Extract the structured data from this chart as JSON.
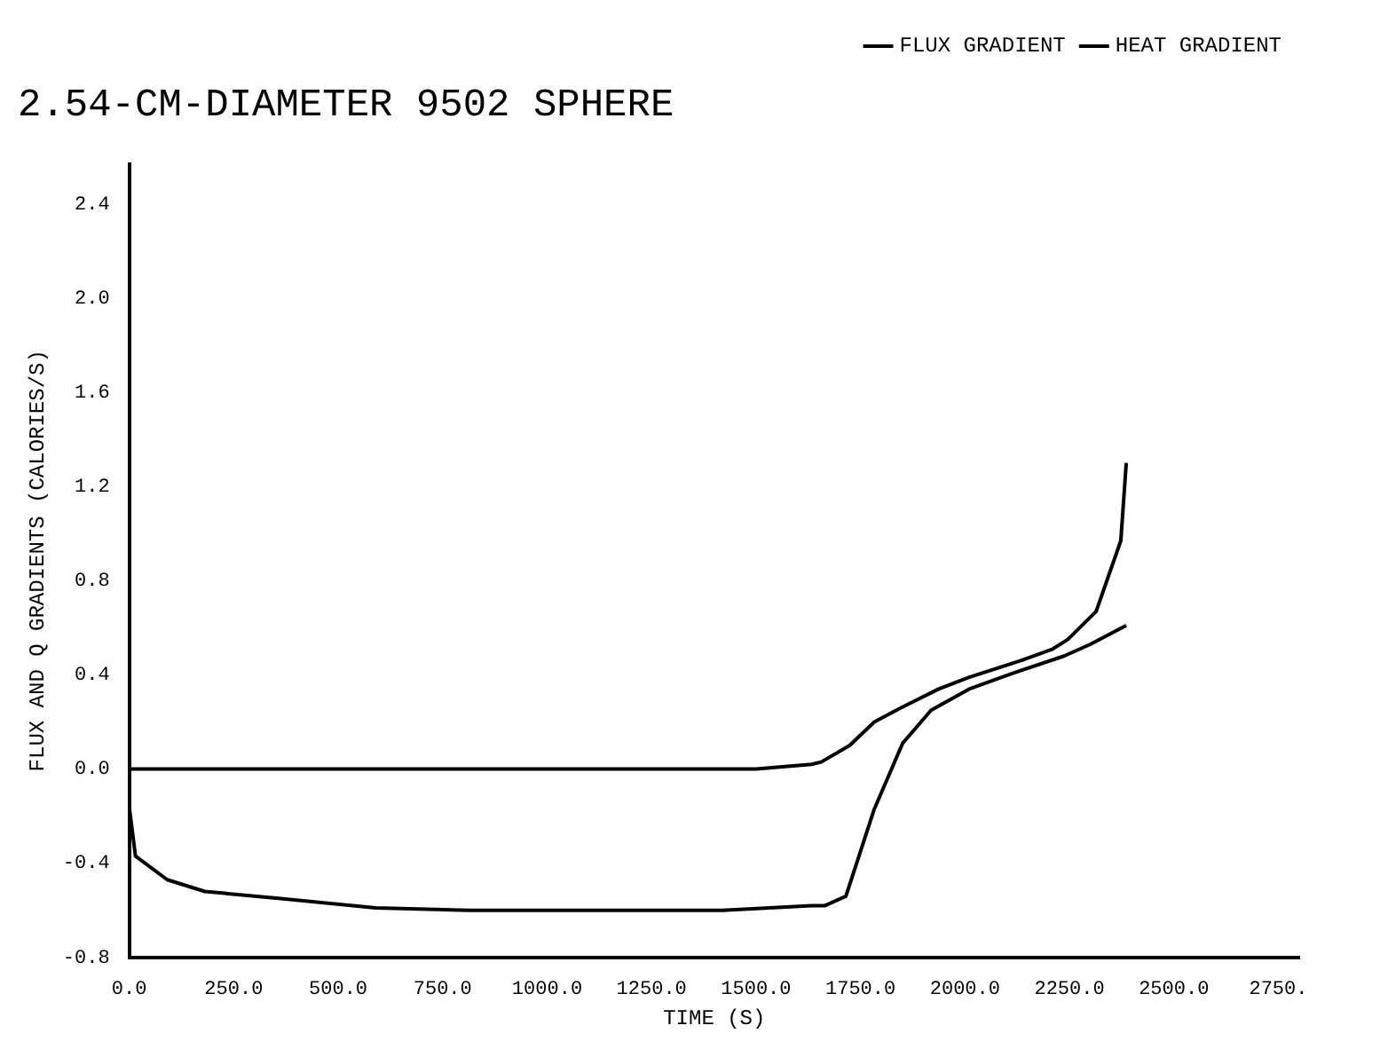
{
  "chart_data": {
    "type": "line",
    "title": "2.54-CM-DIAMETER 9502 SPHERE",
    "xlabel": "TIME (S)",
    "ylabel": "FLUX AND Q GRADIENTS (CALORIES/S)",
    "legend": "top right",
    "grid": false,
    "marker": "none",
    "line_style": "solid",
    "xlim": [
      0,
      2800
    ],
    "ylim": [
      -0.8,
      2.57
    ],
    "xticks": [
      {
        "value": 0,
        "label": "0.0"
      },
      {
        "value": 250,
        "label": "250.0"
      },
      {
        "value": 500,
        "label": "500.0"
      },
      {
        "value": 750,
        "label": "750.0"
      },
      {
        "value": 1000,
        "label": "1000.0"
      },
      {
        "value": 1250,
        "label": "1250.0"
      },
      {
        "value": 1500,
        "label": "1500.0"
      },
      {
        "value": 1750,
        "label": "1750.0"
      },
      {
        "value": 2000,
        "label": "2000.0"
      },
      {
        "value": 2250,
        "label": "2250.0"
      },
      {
        "value": 2500,
        "label": "2500.0"
      },
      {
        "value": 2750,
        "label": "2750."
      }
    ],
    "yticks": [
      {
        "value": -0.8,
        "label": "-0.8"
      },
      {
        "value": -0.4,
        "label": "-0.4"
      },
      {
        "value": 0,
        "label": "0.0"
      },
      {
        "value": 0.4,
        "label": "0.4"
      },
      {
        "value": 0.8,
        "label": "0.8"
      },
      {
        "value": 1.2,
        "label": "1.2"
      },
      {
        "value": 1.6,
        "label": "1.6"
      },
      {
        "value": 2.0,
        "label": "2.0"
      },
      {
        "value": 2.4,
        "label": "2.4"
      }
    ],
    "series": [
      {
        "name": "FLUX GRADIENT",
        "color": "#000000",
        "x": [
          0,
          500,
          1000,
          1500,
          1633,
          1656,
          1724,
          1783,
          1847,
          1937,
          2010,
          2132,
          2210,
          2246,
          2314,
          2373,
          2386
        ],
        "values": [
          0,
          0,
          0,
          0,
          0.02,
          0.03,
          0.1,
          0.2,
          0.26,
          0.34,
          0.39,
          0.46,
          0.51,
          0.55,
          0.67,
          0.97,
          1.3
        ]
      },
      {
        "name": "HEAT GRADIENT",
        "color": "#000000",
        "x": [
          0,
          15,
          91,
          181,
          363,
          590,
          817,
          1420,
          1633,
          1665,
          1715,
          1783,
          1851,
          1919,
          2010,
          2119,
          2237,
          2300,
          2386
        ],
        "values": [
          -0.16,
          -0.37,
          -0.47,
          -0.52,
          -0.55,
          -0.59,
          -0.6,
          -0.6,
          -0.58,
          -0.58,
          -0.54,
          -0.17,
          0.11,
          0.25,
          0.34,
          0.41,
          0.48,
          0.53,
          0.61
        ]
      }
    ]
  }
}
